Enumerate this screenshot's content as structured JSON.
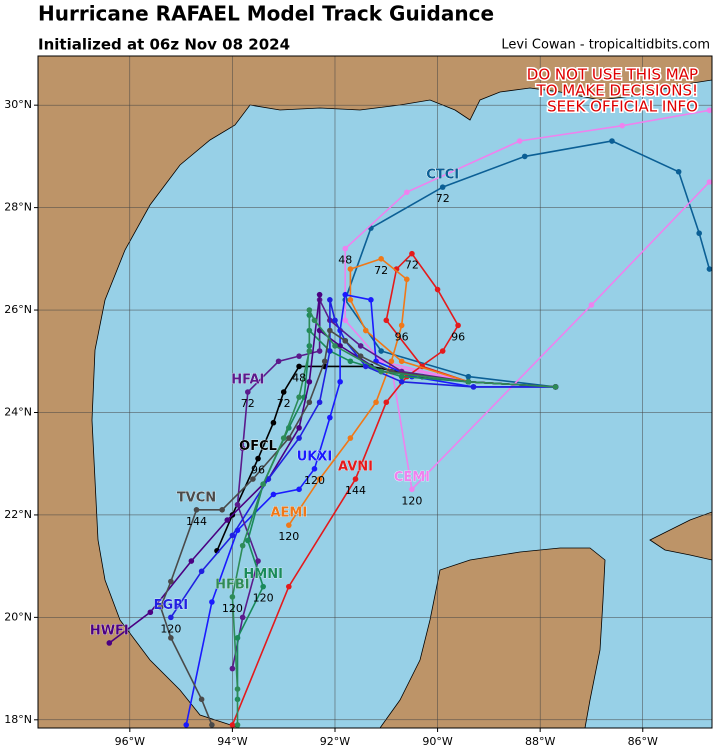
{
  "title": "Hurricane RAFAEL Model Track Guidance",
  "subtitle": "Initialized at 06z Nov 08 2024",
  "credit": "Levi Cowan - tropicaltidbits.com",
  "warning": [
    "DO NOT USE THIS MAP",
    "TO MAKE DECISIONS!",
    "SEEK OFFICIAL INFO"
  ],
  "map": {
    "xlim": [
      -97.79,
      -84.65
    ],
    "ylim": [
      17.84,
      30.96
    ],
    "grid": true,
    "xticks": [
      {
        "value": -96,
        "label": "96°W"
      },
      {
        "value": -94,
        "label": "94°W"
      },
      {
        "value": -92,
        "label": "92°W"
      },
      {
        "value": -90,
        "label": "90°W"
      },
      {
        "value": -88,
        "label": "88°W"
      },
      {
        "value": -86,
        "label": "86°W"
      }
    ],
    "yticks": [
      {
        "value": 18,
        "label": "18°N"
      },
      {
        "value": 20,
        "label": "20°N"
      },
      {
        "value": 22,
        "label": "22°N"
      },
      {
        "value": 24,
        "label": "24°N"
      },
      {
        "value": 26,
        "label": "26°N"
      },
      {
        "value": 28,
        "label": "28°N"
      },
      {
        "value": 30,
        "label": "30°N"
      }
    ]
  },
  "tracks": [
    {
      "name": "CTCI",
      "color": "#0b5f95",
      "lon": [
        -87.7,
        -89.4,
        -91.1,
        -91.8,
        -91.3,
        -89.9,
        -88.3,
        -86.6,
        -85.3,
        -84.9,
        -84.7
      ],
      "lat": [
        24.5,
        24.7,
        25.2,
        26.2,
        27.6,
        28.4,
        29.0,
        29.3,
        28.7,
        27.5,
        26.8
      ],
      "hour_labels": [
        null,
        null,
        null,
        null,
        null,
        "72",
        null,
        null,
        null,
        null,
        null
      ]
    },
    {
      "color": "#ee82ee",
      "lon": [
        -87.7,
        -89.4,
        -91.1,
        -91.8,
        -91.8,
        -90.6,
        -88.4,
        -86.4,
        -84.7
      ],
      "lat": [
        24.5,
        24.6,
        25.0,
        25.8,
        27.2,
        28.3,
        29.3,
        29.6,
        29.9
      ],
      "hour_labels": [
        null,
        null,
        null,
        null,
        "48",
        null,
        null,
        null,
        null
      ]
    },
    {
      "name": "CEMI",
      "color": "#ee82ee",
      "lon": [
        -87.7,
        -89.4,
        -90.9,
        -90.5,
        -87.0,
        -84.7
      ],
      "lat": [
        24.5,
        24.6,
        24.9,
        22.5,
        26.1,
        28.5
      ],
      "hour_labels": [
        null,
        null,
        null,
        "120",
        null,
        null
      ]
    },
    {
      "name": "AVNI",
      "color": "#e41a1c",
      "lon": [
        -87.7,
        -89.4,
        -90.3,
        -91.0,
        -90.8,
        -90.5,
        -90.0,
        -89.6,
        -89.9,
        -90.6,
        -91.0,
        -91.6,
        -92.9,
        -94.0
      ],
      "lat": [
        24.5,
        24.6,
        24.9,
        25.8,
        26.8,
        27.1,
        26.4,
        25.7,
        25.2,
        24.7,
        24.2,
        22.7,
        20.6,
        17.9
      ],
      "hour_labels": [
        null,
        null,
        null,
        null,
        null,
        "72",
        null,
        "96",
        null,
        null,
        null,
        "144",
        null,
        null
      ]
    },
    {
      "name": "AEMI",
      "color": "#f07818",
      "lon": [
        -87.7,
        -89.4,
        -90.7,
        -91.4,
        -91.7,
        -91.7,
        -91.1,
        -90.6,
        -90.7,
        -90.9,
        -91.2,
        -91.7,
        -92.3,
        -92.9
      ],
      "lat": [
        24.5,
        24.6,
        25.0,
        25.6,
        26.2,
        26.8,
        27.0,
        26.6,
        25.7,
        25.0,
        24.2,
        23.5,
        22.7,
        21.8
      ],
      "hour_labels": [
        null,
        null,
        null,
        null,
        null,
        null,
        "72",
        null,
        "96",
        null,
        null,
        null,
        null,
        "120"
      ]
    },
    {
      "name": "OFCL",
      "color": "#000000",
      "lon": [
        -87.7,
        -89.4,
        -90.3,
        -91.3,
        -92.2,
        -92.7,
        -93.0,
        -93.2,
        -93.5,
        -94.0,
        -94.3
      ],
      "lat": [
        24.5,
        24.6,
        24.7,
        24.9,
        24.9,
        24.9,
        24.4,
        23.8,
        23.1,
        22.0,
        21.3
      ],
      "hour_labels": [
        null,
        null,
        null,
        null,
        null,
        "48",
        "72",
        null,
        "96",
        null,
        null
      ]
    },
    {
      "name": "UKXI",
      "color": "#1a1aff",
      "lon": [
        -87.7,
        -89.3,
        -90.5,
        -91.2,
        -91.3,
        -91.8,
        -91.9,
        -91.9,
        -92.1,
        -92.4,
        -92.7,
        -93.2,
        -93.9,
        -94.4,
        -94.9
      ],
      "lat": [
        24.5,
        24.5,
        24.7,
        25.0,
        26.2,
        26.3,
        25.6,
        24.6,
        23.9,
        22.9,
        22.5,
        22.4,
        21.7,
        20.3,
        17.9
      ],
      "hour_labels": [
        null,
        null,
        null,
        null,
        null,
        null,
        null,
        null,
        null,
        "120",
        null,
        null,
        null,
        null,
        null
      ]
    },
    {
      "name": "HFAI",
      "color": "#5b1a8c",
      "lon": [
        -87.7,
        -89.4,
        -90.7,
        -91.5,
        -92.1,
        -92.3,
        -92.3,
        -92.7,
        -93.1,
        -93.7,
        -93.8,
        -93.9,
        -93.5,
        -93.8,
        -94.0
      ],
      "lat": [
        24.5,
        24.6,
        24.8,
        25.3,
        25.8,
        26.2,
        25.2,
        25.1,
        25.0,
        24.4,
        23.3,
        22.2,
        21.1,
        20.0,
        19.0
      ],
      "hour_labels": [
        null,
        null,
        null,
        null,
        null,
        null,
        null,
        null,
        null,
        "72",
        null,
        null,
        null,
        null,
        null
      ]
    },
    {
      "name": "HMNI",
      "color": "#1a8a5a",
      "lon": [
        -87.7,
        -89.4,
        -90.7,
        -91.7,
        -92.1,
        -92.5,
        -92.5,
        -92.5,
        -92.6,
        -92.9,
        -93.4,
        -93.7,
        -93.4,
        -93.9,
        -93.9
      ],
      "lat": [
        24.5,
        24.6,
        24.7,
        25.0,
        25.2,
        25.6,
        25.9,
        25.3,
        24.3,
        23.7,
        22.6,
        21.5,
        20.6,
        19.6,
        18.4
      ],
      "hour_labels": [
        null,
        null,
        null,
        null,
        null,
        null,
        null,
        null,
        null,
        null,
        null,
        null,
        "120",
        null,
        null
      ]
    },
    {
      "name": "HWFI",
      "color": "#4b0082",
      "lon": [
        -87.7,
        -89.4,
        -91.1,
        -91.9,
        -92.3,
        -92.3,
        -92.5,
        -92.7,
        -93.3,
        -94.1,
        -94.8,
        -95.6,
        -96.4
      ],
      "lat": [
        24.5,
        24.6,
        24.8,
        25.3,
        25.6,
        26.3,
        24.6,
        23.7,
        22.7,
        21.9,
        21.1,
        20.1,
        19.5
      ],
      "hour_labels": [
        null,
        null,
        null,
        null,
        null,
        null,
        null,
        null,
        null,
        null,
        null,
        null,
        null
      ]
    },
    {
      "name": "EGRI",
      "color": "#2020e0",
      "lon": [
        -87.7,
        -89.3,
        -90.7,
        -91.4,
        -91.8,
        -92.0,
        -92.1,
        -92.1,
        -92.3,
        -92.7,
        -93.3,
        -94.0,
        -94.6,
        -95.2
      ],
      "lat": [
        24.5,
        24.5,
        24.6,
        24.9,
        25.4,
        25.8,
        26.2,
        25.2,
        24.2,
        23.5,
        22.7,
        21.6,
        20.9,
        20.0
      ],
      "hour_labels": [
        null,
        null,
        null,
        null,
        null,
        null,
        null,
        null,
        null,
        null,
        null,
        null,
        null,
        "120"
      ]
    },
    {
      "name": "TVCN",
      "color": "#4a4a4a",
      "lon": [
        -87.7,
        -89.4,
        -90.9,
        -91.5,
        -91.8,
        -92.1,
        -92.2,
        -92.5,
        -92.9,
        -93.6,
        -94.2,
        -94.7,
        -95.2,
        -95.4,
        -95.2,
        -94.6,
        -94.4
      ],
      "lat": [
        24.5,
        24.6,
        24.8,
        25.1,
        25.4,
        25.6,
        25.0,
        24.2,
        23.5,
        22.7,
        22.1,
        22.1,
        20.7,
        20.2,
        19.6,
        18.4,
        17.9
      ],
      "hour_labels": [
        null,
        null,
        null,
        null,
        null,
        null,
        null,
        null,
        null,
        null,
        null,
        "144",
        null,
        null,
        null,
        null,
        null
      ]
    },
    {
      "name": "HFBI",
      "color": "#2e8b57",
      "lon": [
        -87.7,
        -89.4,
        -91.1,
        -92.0,
        -92.4,
        -92.5,
        -92.5,
        -92.7,
        -93.0,
        -93.4,
        -93.8,
        -94.0,
        -93.9,
        -93.9
      ],
      "lat": [
        24.5,
        24.6,
        24.8,
        25.3,
        25.8,
        26.0,
        25.2,
        24.3,
        23.5,
        22.6,
        21.4,
        20.4,
        18.6,
        17.9
      ],
      "hour_labels": [
        null,
        null,
        null,
        null,
        null,
        null,
        null,
        null,
        null,
        null,
        null,
        "120",
        null,
        null
      ]
    }
  ]
}
